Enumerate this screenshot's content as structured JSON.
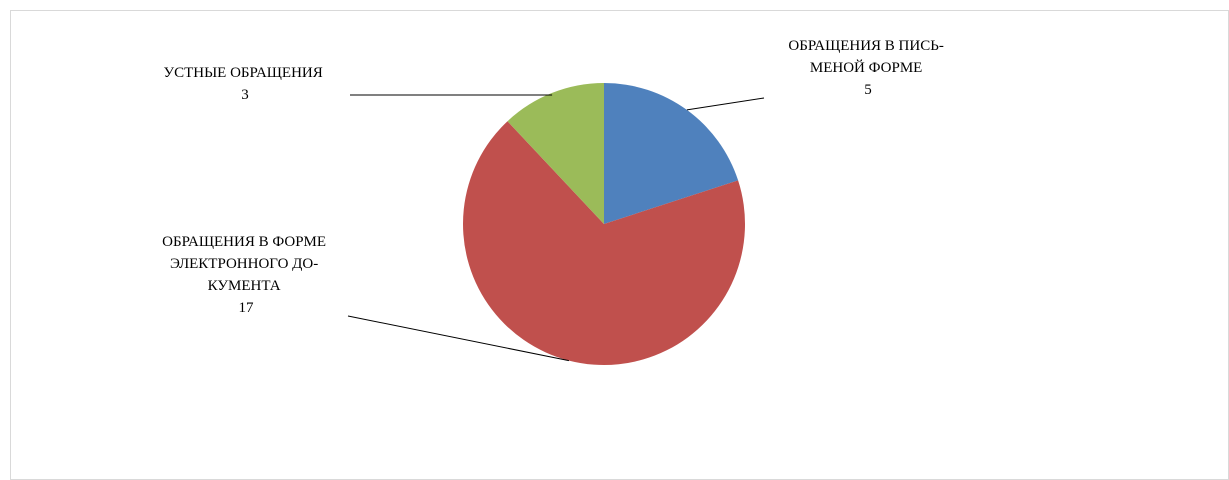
{
  "chart_data": {
    "type": "pie",
    "title": "",
    "slices": [
      {
        "label_lines": [
          "ОБРАЩЕНИЯ В ПИСЬ-",
          "МЕНОЙ ФОРМЕ"
        ],
        "value": 5,
        "value_label": "5",
        "color": "#4F81BD"
      },
      {
        "label_lines": [
          "ОБРАЩЕНИЯ В ФОРМЕ",
          "ЭЛЕКТРОННОГО ДО-",
          "КУМЕНТА"
        ],
        "value": 17,
        "value_label": "17",
        "color": "#C0504D"
      },
      {
        "label_lines": [
          "УСТНЫЕ ОБРАЩЕНИЯ"
        ],
        "value": 3,
        "value_label": "3",
        "color": "#9BBB59"
      }
    ],
    "start_angle_deg": 0,
    "direction": "clockwise",
    "legend": "none"
  }
}
